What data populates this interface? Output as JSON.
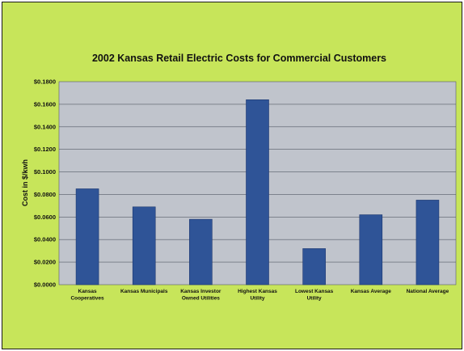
{
  "chart_data": {
    "type": "bar",
    "title": "2002 Kansas Retail Electric Costs for Commercial Customers",
    "xlabel": "",
    "ylabel": "Cost in $/kwh",
    "categories": [
      [
        "Kansas",
        "Cooperatives"
      ],
      [
        "Kansas Municipals"
      ],
      [
        "Kansas Investor",
        "Owned Utilities"
      ],
      [
        "Highest Kansas",
        "Utility"
      ],
      [
        "Lowest Kansas",
        "Utility"
      ],
      [
        "Kansas Average"
      ],
      [
        "National Average"
      ]
    ],
    "values": [
      0.085,
      0.069,
      0.058,
      0.164,
      0.032,
      0.062,
      0.075
    ],
    "ylim": [
      0,
      0.18
    ],
    "y_ticks": [
      "$0.0000",
      "$0.0200",
      "$0.0400",
      "$0.0600",
      "$0.0800",
      "$0.1000",
      "$0.1200",
      "$0.1400",
      "$0.1600",
      "$0.1800"
    ],
    "grid": true,
    "legend": "none",
    "colors": {
      "background": "#c7e55a",
      "plot_area": "#c0c4cc",
      "bar": "#2f5497",
      "bar_edge": "#1d3870",
      "gridline": "#555a66"
    }
  }
}
